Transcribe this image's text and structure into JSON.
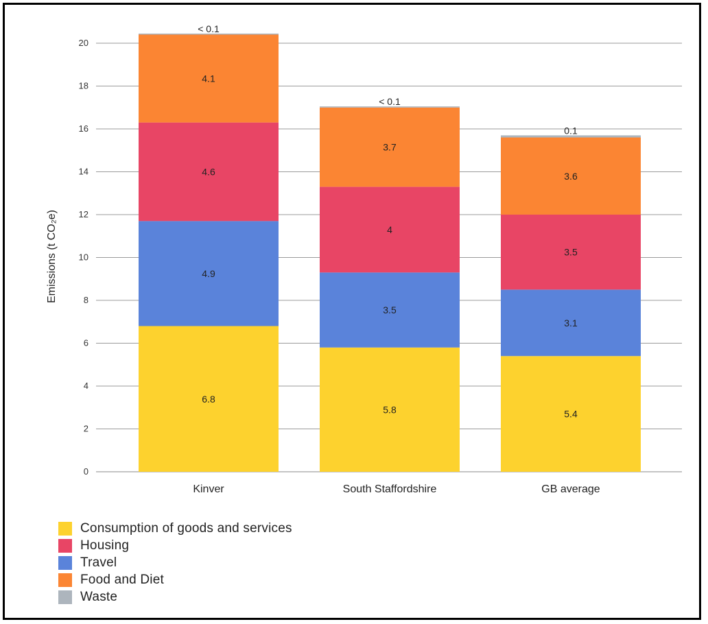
{
  "chart_data": {
    "type": "bar",
    "stacked": true,
    "categories": [
      "Kinver",
      "South Staffordshire",
      "GB average"
    ],
    "series": [
      {
        "name": "Consumption of goods and services",
        "color": "#FDD22E",
        "values": [
          6.8,
          5.8,
          5.4
        ],
        "labels": [
          "6.8",
          "5.8",
          "5.4"
        ]
      },
      {
        "name": "Travel",
        "color": "#5A83DA",
        "values": [
          4.9,
          3.5,
          3.1
        ],
        "labels": [
          "4.9",
          "3.5",
          "3.1"
        ]
      },
      {
        "name": "Housing",
        "color": "#E84565",
        "values": [
          4.6,
          4.0,
          3.5
        ],
        "labels": [
          "4.6",
          "4",
          "3.5"
        ]
      },
      {
        "name": "Food and Diet",
        "color": "#FB8533",
        "values": [
          4.1,
          3.7,
          3.6
        ],
        "labels": [
          "4.1",
          "3.7",
          "3.6"
        ]
      },
      {
        "name": "Waste",
        "color": "#ADB5BD",
        "values": [
          0.05,
          0.05,
          0.1
        ],
        "labels": [
          "< 0.1",
          "< 0.1",
          "0.1"
        ]
      }
    ],
    "legend_order": [
      "Consumption of goods and services",
      "Housing",
      "Travel",
      "Food and Diet",
      "Waste"
    ],
    "ylabel": "Emissions (t CO₂e)",
    "xlabel": "",
    "ylim": [
      0,
      20
    ],
    "yticks": [
      0,
      2,
      4,
      6,
      8,
      10,
      12,
      14,
      16,
      18,
      20
    ],
    "grid": true,
    "legend_position": "bottom-left"
  }
}
